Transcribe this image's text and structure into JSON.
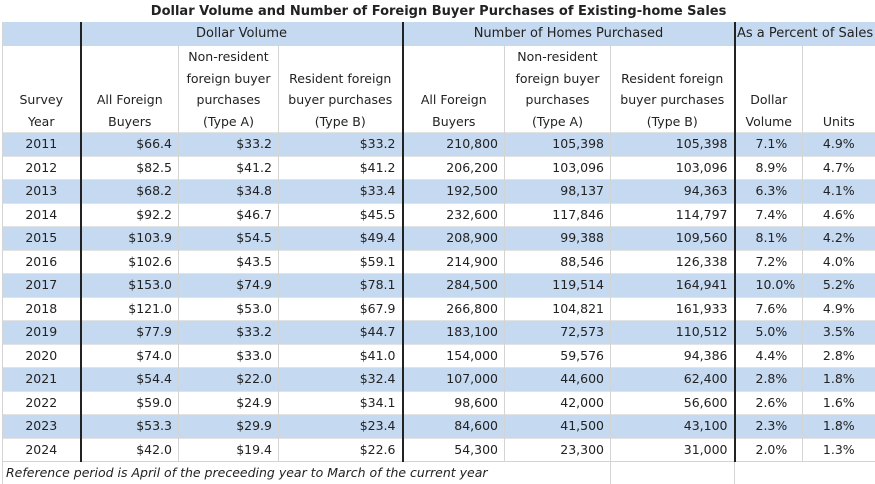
{
  "title": "Dollar Volume and Number of Foreign Buyer Purchases of Existing-home Sales",
  "groups": {
    "dollar_volume": "Dollar Volume",
    "number_of_homes": "Number of Homes Purchased",
    "percent_of_sales": "As a Percent of Sales"
  },
  "columns": {
    "survey_year": [
      "Survey",
      "Year"
    ],
    "dv_all": [
      "All Foreign",
      "Buyers"
    ],
    "dv_nonres": [
      "Non-resident",
      "foreign buyer",
      "purchases",
      "(Type A)"
    ],
    "dv_res": [
      "Resident foreign",
      "buyer purchases",
      "(Type B)"
    ],
    "nh_all": [
      "All Foreign",
      "Buyers"
    ],
    "nh_nonres": [
      "Non-resident",
      "foreign buyer",
      "purchases",
      "(Type A)"
    ],
    "nh_res": [
      "Resident foreign",
      "buyer purchases",
      "(Type B)"
    ],
    "pct_dollar": [
      "Dollar",
      "Volume"
    ],
    "pct_units": [
      "Units"
    ]
  },
  "rows": [
    [
      "2011",
      "$66.4",
      "$33.2",
      "$33.2",
      "210,800",
      "105,398",
      "105,398",
      "7.1%",
      "4.9%"
    ],
    [
      "2012",
      "$82.5",
      "$41.2",
      "$41.2",
      "206,200",
      "103,096",
      "103,096",
      "8.9%",
      "4.7%"
    ],
    [
      "2013",
      "$68.2",
      "$34.8",
      "$33.4",
      "192,500",
      "98,137",
      "94,363",
      "6.3%",
      "4.1%"
    ],
    [
      "2014",
      "$92.2",
      "$46.7",
      "$45.5",
      "232,600",
      "117,846",
      "114,797",
      "7.4%",
      "4.6%"
    ],
    [
      "2015",
      "$103.9",
      "$54.5",
      "$49.4",
      "208,900",
      "99,388",
      "109,560",
      "8.1%",
      "4.2%"
    ],
    [
      "2016",
      "$102.6",
      "$43.5",
      "$59.1",
      "214,900",
      "88,546",
      "126,338",
      "7.2%",
      "4.0%"
    ],
    [
      "2017",
      "$153.0",
      "$74.9",
      "$78.1",
      "284,500",
      "119,514",
      "164,941",
      "10.0%",
      "5.2%"
    ],
    [
      "2018",
      "$121.0",
      "$53.0",
      "$67.9",
      "266,800",
      "104,821",
      "161,933",
      "7.6%",
      "4.9%"
    ],
    [
      "2019",
      "$77.9",
      "$33.2",
      "$44.7",
      "183,100",
      "72,573",
      "110,512",
      "5.0%",
      "3.5%"
    ],
    [
      "2020",
      "$74.0",
      "$33.0",
      "$41.0",
      "154,000",
      "59,576",
      "94,386",
      "4.4%",
      "2.8%"
    ],
    [
      "2021",
      "$54.4",
      "$22.0",
      "$32.4",
      "107,000",
      "44,600",
      "62,400",
      "2.8%",
      "1.8%"
    ],
    [
      "2022",
      "$59.0",
      "$24.9",
      "$34.1",
      "98,600",
      "42,000",
      "56,600",
      "2.6%",
      "1.6%"
    ],
    [
      "2023",
      "$53.3",
      "$29.9",
      "$23.4",
      "84,600",
      "41,500",
      "43,100",
      "2.3%",
      "1.8%"
    ],
    [
      "2024",
      "$42.0",
      "$19.4",
      "$22.6",
      "54,300",
      "23,300",
      "31,000",
      "2.0%",
      "1.3%"
    ]
  ],
  "footnote": "Reference period is April of the preceeding year to March of the current year",
  "colors": {
    "header_fill": "#c5d9f1",
    "row_alt_fill": "#c5d9f1",
    "divider": "#222222"
  }
}
